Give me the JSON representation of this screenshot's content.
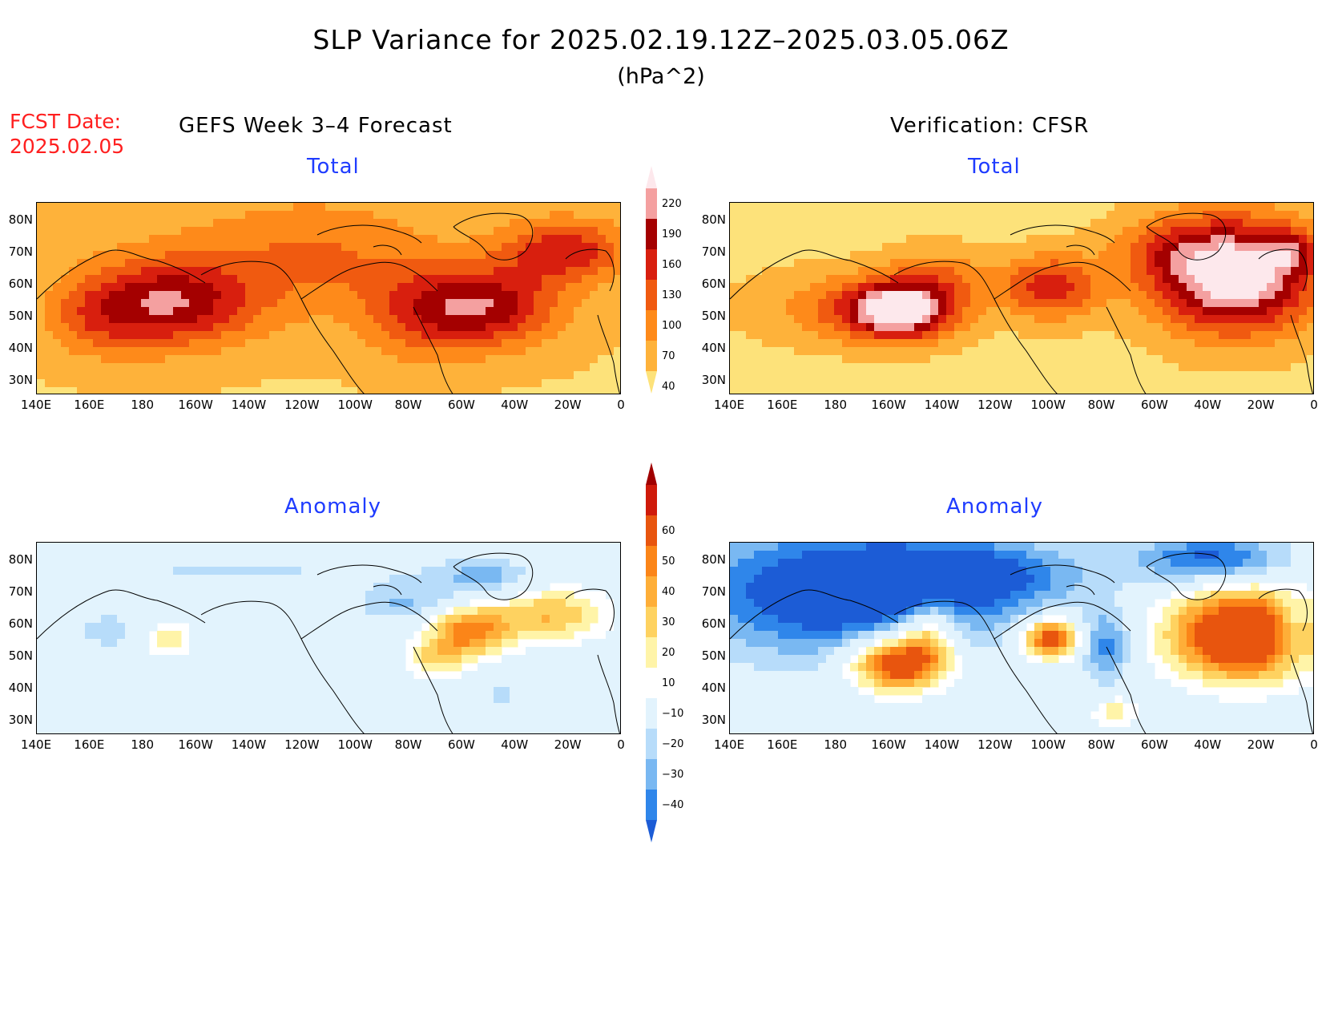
{
  "header": {
    "title": "SLP Variance for 2025.02.19.12Z–2025.03.05.06Z",
    "units": "(hPa^2)",
    "fcst_label": "FCST Date:",
    "fcst_date": "2025.02.05"
  },
  "columns": {
    "left": "GEFS Week 3–4 Forecast",
    "right": "Verification: CFSR"
  },
  "panels": {
    "top_title": "Total",
    "bottom_title": "Anomaly"
  },
  "axes": {
    "lat_labels": [
      "80N",
      "70N",
      "60N",
      "50N",
      "40N",
      "30N"
    ],
    "lon_labels": [
      "140E",
      "160E",
      "180",
      "160W",
      "140W",
      "120W",
      "100W",
      "80W",
      "60W",
      "40W",
      "20W",
      "0"
    ]
  },
  "colorbar_total": {
    "levels": [
      "40",
      "70",
      "100",
      "130",
      "160",
      "190",
      "220"
    ],
    "colors": [
      "#fde27a",
      "#feb23a",
      "#fe8a1a",
      "#f05a10",
      "#d81f0e",
      "#a40000",
      "#f4a0a0",
      "#fde8ec"
    ]
  },
  "colorbar_anomaly": {
    "levels": [
      "−40",
      "−30",
      "−20",
      "−10",
      "10",
      "20",
      "30",
      "40",
      "50",
      "60"
    ],
    "colors": [
      "#1c5cd6",
      "#2f86ea",
      "#79b8f2",
      "#b7dcfa",
      "#e2f3fd",
      "#ffffff",
      "#fff4a8",
      "#fed260",
      "#feae38",
      "#fb8518",
      "#e8550e",
      "#cf1a0a",
      "#a00000"
    ]
  }
}
